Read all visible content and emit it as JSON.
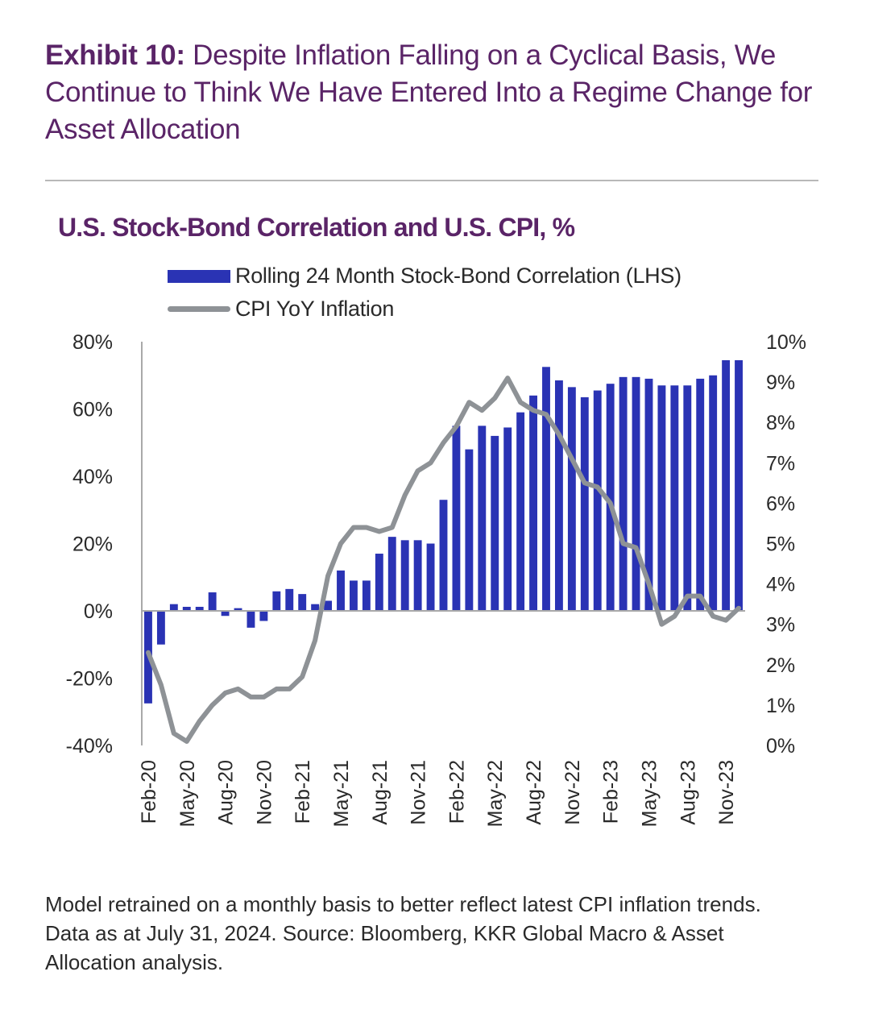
{
  "header": {
    "exhibit_label": "Exhibit 10:",
    "exhibit_title": " Despite Inflation Falling on a Cyclical Basis, We Continue to Think We Have Entered Into a Regime Change for Asset Allocation"
  },
  "colors": {
    "bar": "#2a33b4",
    "line": "#8e9296",
    "title": "#5a2467",
    "axis": "#a9a9a9"
  },
  "chart_data": {
    "type": "bar+line",
    "title": "U.S. Stock-Bond Correlation and U.S. CPI, %",
    "legend_placement": "top",
    "grid": false,
    "x_labels": [
      "Feb-20",
      "Mar-20",
      "Apr-20",
      "May-20",
      "Jun-20",
      "Jul-20",
      "Aug-20",
      "Sep-20",
      "Oct-20",
      "Nov-20",
      "Dec-20",
      "Jan-21",
      "Feb-21",
      "Mar-21",
      "Apr-21",
      "May-21",
      "Jun-21",
      "Jul-21",
      "Aug-21",
      "Sep-21",
      "Oct-21",
      "Nov-21",
      "Dec-21",
      "Jan-22",
      "Feb-22",
      "Mar-22",
      "Apr-22",
      "May-22",
      "Jun-22",
      "Jul-22",
      "Aug-22",
      "Sep-22",
      "Oct-22",
      "Nov-22",
      "Dec-22",
      "Jan-23",
      "Feb-23",
      "Mar-23",
      "Apr-23",
      "May-23",
      "Jun-23",
      "Jul-23",
      "Aug-23",
      "Sep-23",
      "Oct-23",
      "Nov-23",
      "Dec-23"
    ],
    "tick_labels": [
      "Feb-20",
      "May-20",
      "Aug-20",
      "Nov-20",
      "Feb-21",
      "May-21",
      "Aug-21",
      "Nov-21",
      "Feb-22",
      "May-22",
      "Aug-22",
      "Nov-22",
      "Feb-23",
      "May-23",
      "Aug-23",
      "Nov-23"
    ],
    "series": [
      {
        "name": "Rolling 24 Month Stock-Bond Correlation (LHS)",
        "type": "bar",
        "axis": "left",
        "values": [
          -27.5,
          -10,
          2,
          1.2,
          1.2,
          5.5,
          -1.5,
          0.8,
          -5,
          -3,
          5.8,
          6.5,
          5,
          2,
          3,
          12,
          9,
          9,
          17,
          22,
          21,
          21,
          20,
          33,
          55,
          48,
          55,
          52,
          54.5,
          59,
          64,
          72.5,
          68.5,
          66.5,
          63.5,
          65.5,
          67.5,
          69.5,
          69.5,
          69,
          67,
          67,
          67,
          69,
          70,
          74.5,
          74.5
        ]
      },
      {
        "name": "CPI YoY Inflation",
        "type": "line",
        "axis": "right",
        "values": [
          2.3,
          1.5,
          0.3,
          0.1,
          0.6,
          1.0,
          1.3,
          1.4,
          1.2,
          1.2,
          1.4,
          1.4,
          1.7,
          2.6,
          4.2,
          5.0,
          5.4,
          5.4,
          5.3,
          5.4,
          6.2,
          6.8,
          7.0,
          7.5,
          7.9,
          8.5,
          8.3,
          8.6,
          9.1,
          8.5,
          8.3,
          8.2,
          7.7,
          7.1,
          6.5,
          6.4,
          6.0,
          5.0,
          4.9,
          4.0,
          3.0,
          3.2,
          3.7,
          3.7,
          3.2,
          3.1,
          3.4
        ]
      }
    ],
    "y_left": {
      "min": -40,
      "max": 80,
      "ticks": [
        "80%",
        "60%",
        "40%",
        "20%",
        "0%",
        "-20%",
        "-40%"
      ]
    },
    "y_right": {
      "min": 0,
      "max": 10,
      "ticks": [
        "10%",
        "9%",
        "8%",
        "7%",
        "6%",
        "5%",
        "4%",
        "3%",
        "2%",
        "1%",
        "0%"
      ]
    }
  },
  "footnote": "Model retrained on a monthly basis to better reflect latest CPI inflation trends. Data as at July 31, 2024. Source: Bloomberg, KKR Global Macro & Asset Allocation analysis."
}
